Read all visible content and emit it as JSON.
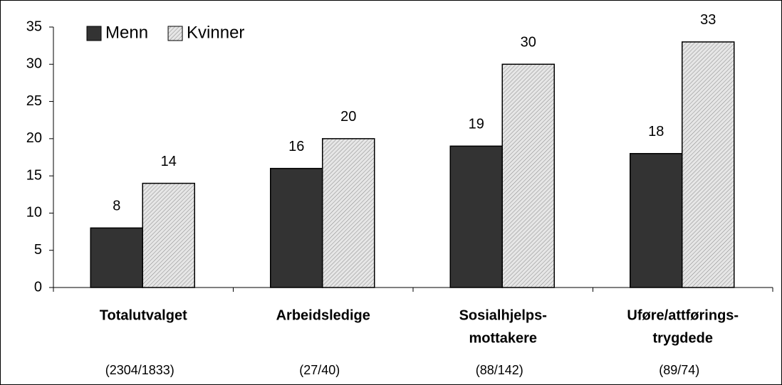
{
  "chart_data": {
    "type": "bar",
    "categories": [
      [
        "Totalutvalget"
      ],
      [
        "Arbeidsledige"
      ],
      [
        "Sosialhjelps-",
        "mottakere"
      ],
      [
        "Uføre/attførings-",
        "trygdede"
      ]
    ],
    "annotations": [
      "(2304/1833)",
      "(27/40)",
      "(88/142)",
      "(89/74)"
    ],
    "series": [
      {
        "name": "Menn",
        "color": "#333333",
        "hatch": false,
        "values": [
          8,
          16,
          19,
          18
        ]
      },
      {
        "name": "Kvinner",
        "color": "#e6e6e6",
        "hatch": true,
        "values": [
          14,
          20,
          30,
          33
        ]
      }
    ],
    "ylim": [
      0,
      35
    ],
    "yticks": [
      0,
      5,
      10,
      15,
      20,
      25,
      30,
      35
    ],
    "grid": false,
    "legend": "top-left"
  }
}
